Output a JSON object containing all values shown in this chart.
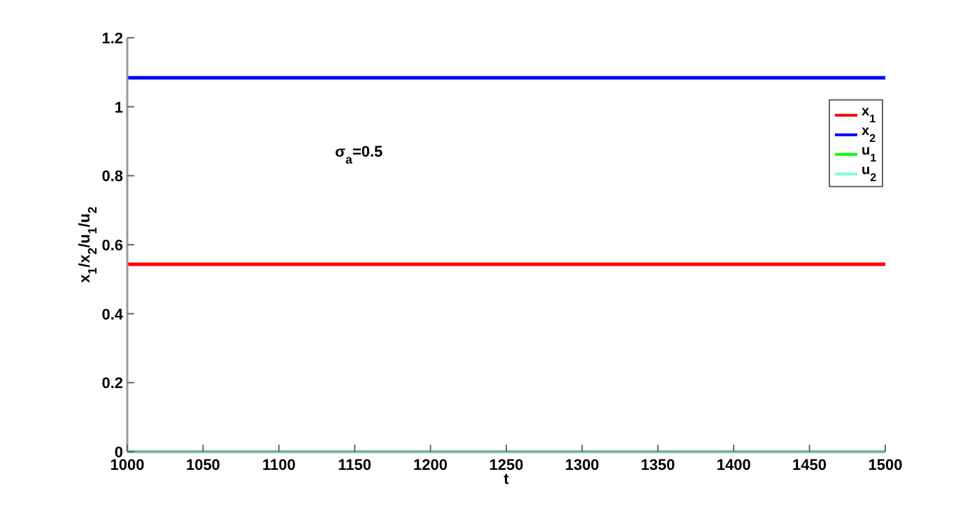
{
  "chart_data": {
    "type": "line",
    "xlabel": "t",
    "ylabel": "x$_{1}$/x$_{2}$/u$_{1}$/u$_{2}$",
    "annotations": [
      "σ$_{a}$=0.5"
    ],
    "x": [
      1000,
      1500
    ],
    "series": [
      {
        "name": "x$_{1}$",
        "color": "#ff0000",
        "values": [
          0.543,
          0.543
        ]
      },
      {
        "name": "x$_{2}$",
        "color": "#0000ff",
        "values": [
          1.084,
          1.084
        ]
      },
      {
        "name": "u$_{1}$",
        "color": "#00ff00",
        "values": [
          null,
          null
        ]
      },
      {
        "name": "u$_{2}$",
        "color": "#7fffd4",
        "values": [
          0,
          0
        ]
      }
    ],
    "xlim": [
      1000,
      1500
    ],
    "xticks": [
      1000,
      1050,
      1100,
      1150,
      1200,
      1250,
      1300,
      1350,
      1400,
      1450,
      1500
    ],
    "ylim": [
      0,
      1.2
    ],
    "yticks": [
      0,
      0.2,
      0.4,
      0.6,
      0.8,
      1,
      1.2
    ],
    "legend": "top right",
    "grid": false,
    "line_style": "solid"
  }
}
